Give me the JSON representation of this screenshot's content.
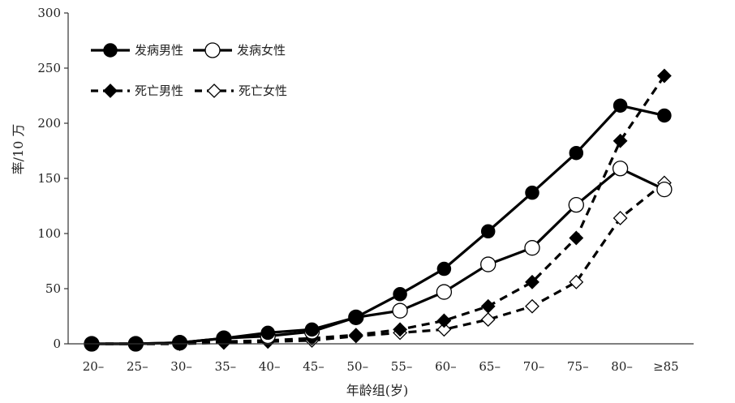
{
  "chart_data": {
    "type": "line",
    "title": "",
    "xlabel": "年龄组(岁)",
    "ylabel": "率/10 万",
    "ylim": [
      0,
      300
    ],
    "yticks": [
      "0",
      "50",
      "100",
      "150",
      "200",
      "250",
      "300"
    ],
    "categories": [
      "20–",
      "25–",
      "30–",
      "35–",
      "40–",
      "45–",
      "50–",
      "55–",
      "60–",
      "65–",
      "70–",
      "75–",
      "80–",
      "≥85"
    ],
    "grid": false,
    "legend_position": "top-left",
    "series": [
      {
        "name": "发病男性",
        "marker": "circle-filled",
        "line": "solid",
        "values": [
          0,
          0,
          1,
          5,
          10,
          13,
          24,
          45,
          68,
          102,
          137,
          173,
          216,
          207
        ]
      },
      {
        "name": "发病女性",
        "marker": "circle-open",
        "line": "solid",
        "values": [
          0,
          0,
          1,
          5,
          7,
          11,
          24,
          30,
          47,
          72,
          87,
          126,
          159,
          140
        ]
      },
      {
        "name": "死亡男性",
        "marker": "diamond-filled",
        "line": "dashed",
        "values": [
          0,
          0,
          0,
          2,
          3,
          5,
          8,
          13,
          21,
          34,
          56,
          96,
          184,
          243
        ]
      },
      {
        "name": "死亡女性",
        "marker": "diamond-open",
        "line": "dashed",
        "values": [
          0,
          0,
          0,
          1,
          2,
          3,
          7,
          10,
          13,
          22,
          34,
          56,
          114,
          146
        ]
      }
    ]
  }
}
